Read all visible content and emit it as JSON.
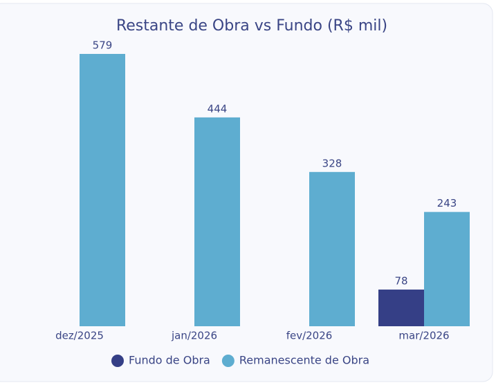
{
  "chart_data": {
    "type": "bar",
    "title": "Restante de Obra vs Fundo (R$ mil)",
    "categories": [
      "dez/2025",
      "jan/2026",
      "fev/2026",
      "mar/2026"
    ],
    "series": [
      {
        "name": "Fundo de Obra",
        "color": "#353f86",
        "values": [
          null,
          null,
          null,
          78
        ]
      },
      {
        "name": "Remanescente de Obra",
        "color": "#5eadd0",
        "values": [
          579,
          444,
          328,
          243
        ]
      }
    ],
    "legend": "bottom"
  }
}
